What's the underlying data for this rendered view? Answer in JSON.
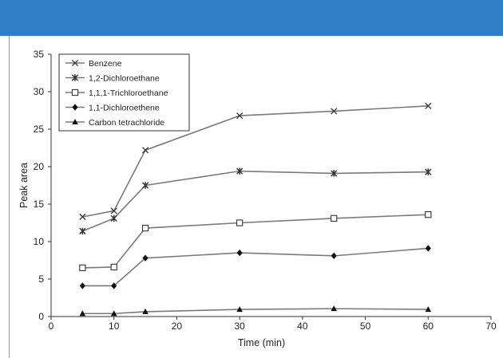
{
  "header": {
    "bar_color": "#2f7ec3"
  },
  "chart_data": {
    "type": "line",
    "xlabel": "Time (min)",
    "ylabel": "Peak area",
    "xlim": [
      0,
      70
    ],
    "ylim": [
      0,
      35
    ],
    "xticks": [
      0,
      10,
      20,
      30,
      40,
      50,
      60,
      70
    ],
    "yticks": [
      0,
      5,
      10,
      15,
      20,
      25,
      30,
      35
    ],
    "grid": false,
    "legend_position": "top-left",
    "x": [
      5,
      10,
      15,
      30,
      45,
      60
    ],
    "series": [
      {
        "name": "Benzene",
        "marker": "x",
        "color": "#7a7a7a",
        "values": [
          13.3,
          14.1,
          22.2,
          26.8,
          27.4,
          28.1
        ]
      },
      {
        "name": "1,2-Dichloroethane",
        "marker": "asterisk",
        "color": "#7a7a7a",
        "values": [
          11.4,
          13.1,
          17.5,
          19.4,
          19.1,
          19.3
        ]
      },
      {
        "name": "1,1,1-Trichloroethane",
        "marker": "square-open",
        "color": "#7a7a7a",
        "values": [
          6.5,
          6.6,
          11.8,
          12.5,
          13.1,
          13.6
        ]
      },
      {
        "name": "1,1-Dichloroethene",
        "marker": "diamond",
        "color": "#7a7a7a",
        "values": [
          4.1,
          4.1,
          7.8,
          8.5,
          8.1,
          9.1
        ]
      },
      {
        "name": "Carbon tetrachloride",
        "marker": "triangle",
        "color": "#7a7a7a",
        "values": [
          0.4,
          0.4,
          0.65,
          0.95,
          1.05,
          0.95
        ]
      }
    ]
  }
}
